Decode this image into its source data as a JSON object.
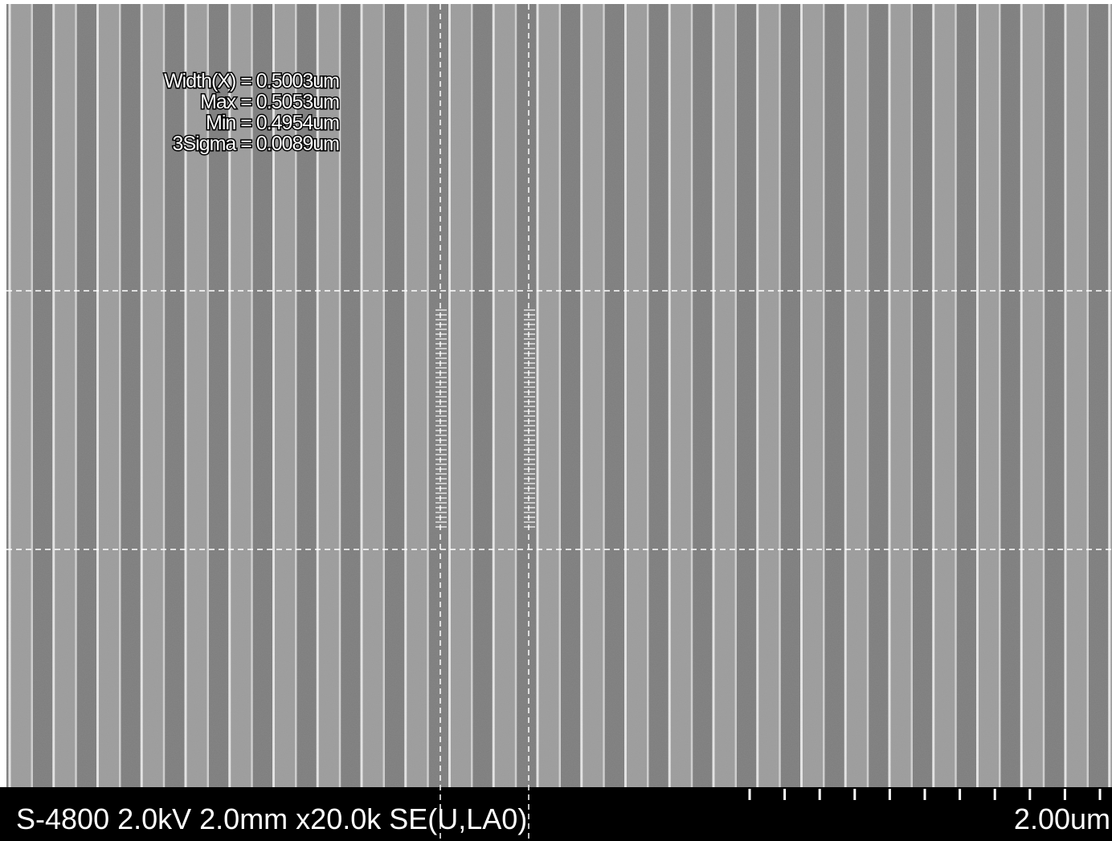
{
  "measurement": {
    "lines": [
      "Width(X) = 0.5003um",
      "Max = 0.5053um",
      "Min = 0.4954um",
      "3Sigma = 0.0089um"
    ]
  },
  "info_bar": {
    "instrument": "S-4800 2.0kV 2.0mm x20.0k SE(U,LA0)",
    "scale_bar": "2.00um"
  }
}
